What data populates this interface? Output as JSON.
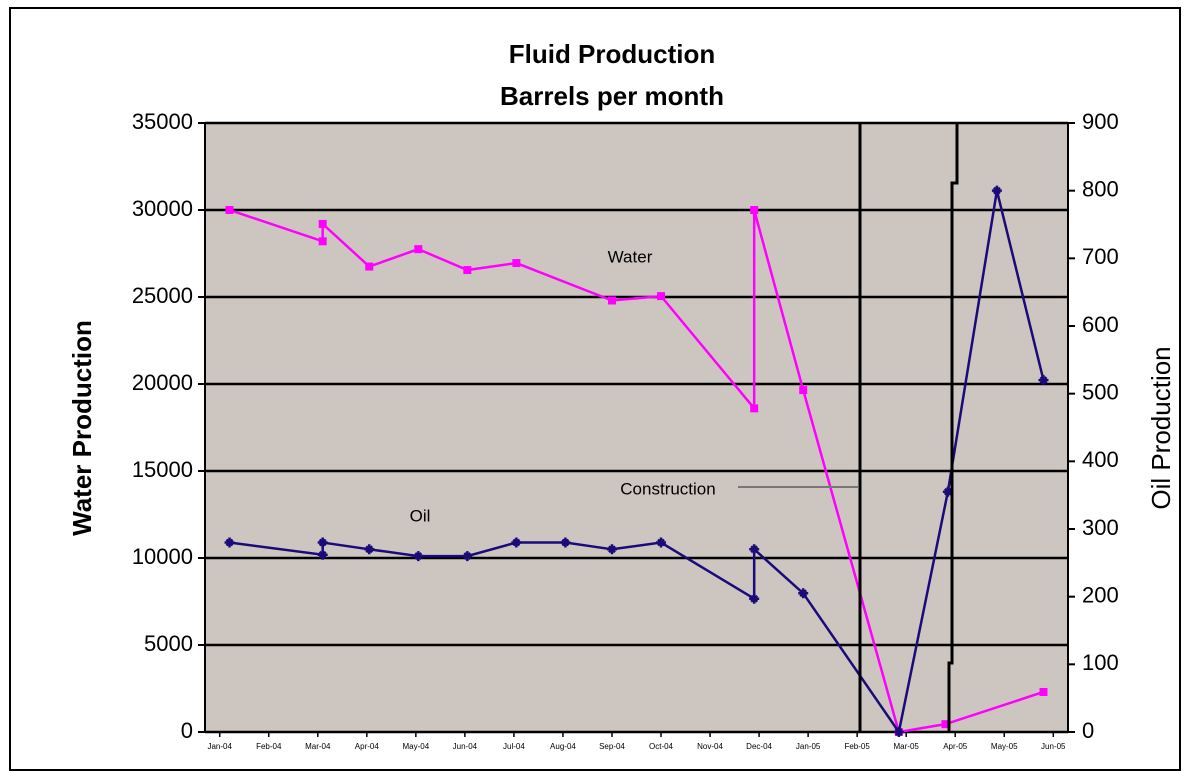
{
  "chart_data": {
    "type": "line",
    "title": "Fluid Production",
    "subtitle": "Barrels per month",
    "y_label": "Water Production",
    "y2_label": "Oil Production",
    "annotations": [
      "Water",
      "Oil",
      "Construction"
    ],
    "xlim": [
      -0.3,
      17.3
    ],
    "xticks": [
      {
        "value": 0,
        "label": "Jan-04"
      },
      {
        "value": 1,
        "label": "Feb-04"
      },
      {
        "value": 2,
        "label": "Mar-04"
      },
      {
        "value": 3,
        "label": "Apr-04"
      },
      {
        "value": 4,
        "label": "May-04"
      },
      {
        "value": 5,
        "label": "Jun-04"
      },
      {
        "value": 6,
        "label": "Jul-04"
      },
      {
        "value": 7,
        "label": "Aug-04"
      },
      {
        "value": 8,
        "label": "Sep-04"
      },
      {
        "value": 9,
        "label": "Oct-04"
      },
      {
        "value": 10,
        "label": "Nov-04"
      },
      {
        "value": 11,
        "label": "Dec-04"
      },
      {
        "value": 12,
        "label": "Jan-05"
      },
      {
        "value": 13,
        "label": "Feb-05"
      },
      {
        "value": 14,
        "label": "Mar-05"
      },
      {
        "value": 15,
        "label": "Apr-05"
      },
      {
        "value": 16,
        "label": "May-05"
      },
      {
        "value": 17,
        "label": "Jun-05"
      }
    ],
    "ylim": [
      0,
      35000
    ],
    "yticks": [
      0,
      5000,
      10000,
      15000,
      20000,
      25000,
      30000,
      35000
    ],
    "y2lim": [
      0,
      900
    ],
    "y2ticks": [
      0,
      100,
      200,
      300,
      400,
      500,
      600,
      700,
      800,
      900
    ],
    "grid": true,
    "series": [
      {
        "name": "Water",
        "color": "#ff00ff",
        "marker": "square",
        "x": [
          0.2,
          2.1,
          2.1,
          3.05,
          4.05,
          5.05,
          6.05,
          8.0,
          9.0,
          10.9,
          10.9,
          11.9,
          13.85,
          14.8,
          16.8
        ],
        "values": [
          30000,
          28200,
          29200,
          26750,
          27750,
          26550,
          26950,
          24800,
          25050,
          18600,
          30000,
          19650,
          0,
          450,
          2300
        ]
      },
      {
        "name": "Oil",
        "color": "#1a0a7a",
        "marker": "cross",
        "axis": "y2",
        "x": [
          0.2,
          2.1,
          2.1,
          3.05,
          4.05,
          5.05,
          6.05,
          7.05,
          8.0,
          9.0,
          10.9,
          10.9,
          11.9,
          13.85,
          14.85,
          15.85,
          16.8
        ],
        "values": [
          280,
          262,
          280,
          270,
          260,
          260,
          280,
          280,
          270,
          280,
          197,
          270,
          205,
          0,
          355,
          800,
          520
        ]
      }
    ]
  }
}
